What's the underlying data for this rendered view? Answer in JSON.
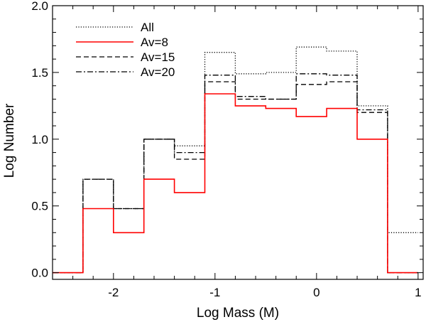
{
  "chart_data": {
    "type": "line",
    "style": "step histogram",
    "title": "",
    "xlabel": "Log Mass (M)",
    "ylabel": "Log Number",
    "xlim": [
      -2.6,
      1.05
    ],
    "ylim": [
      -0.05,
      2.0
    ],
    "x_ticks": [
      -2,
      -1,
      0,
      1
    ],
    "x_tick_labels": [
      "-2",
      "-1",
      "0",
      "1"
    ],
    "y_ticks": [
      0.0,
      0.5,
      1.0,
      1.5,
      2.0
    ],
    "y_tick_labels": [
      "0.0",
      "0.5",
      "1.0",
      "1.5",
      "2.0"
    ],
    "bin_edges": [
      -2.6,
      -2.3,
      -2.0,
      -1.7,
      -1.4,
      -1.1,
      -0.8,
      -0.5,
      -0.2,
      0.1,
      0.4,
      0.7,
      1.0
    ],
    "legend_position": "top-left",
    "series": [
      {
        "name": "All",
        "color": "#000000",
        "dash": "dotted",
        "values": [
          0.0,
          0.7,
          0.48,
          1.0,
          0.95,
          1.65,
          1.49,
          1.5,
          1.69,
          1.66,
          1.25,
          0.3
        ]
      },
      {
        "name": "Av=8",
        "color": "#ff0000",
        "dash": "solid",
        "values": [
          0.0,
          0.48,
          0.3,
          0.7,
          0.6,
          1.34,
          1.25,
          1.23,
          1.17,
          1.23,
          1.0,
          0.0
        ]
      },
      {
        "name": "Av=15",
        "color": "#000000",
        "dash": "dashed",
        "values": [
          0.0,
          0.7,
          0.48,
          1.0,
          0.85,
          1.43,
          1.3,
          1.3,
          1.41,
          1.43,
          1.2,
          0.0
        ]
      },
      {
        "name": "Av=20",
        "color": "#000000",
        "dash": "dashdot",
        "values": [
          0.0,
          0.7,
          0.48,
          1.0,
          0.9,
          1.48,
          1.32,
          1.3,
          1.49,
          1.48,
          1.22,
          0.0
        ]
      }
    ]
  }
}
